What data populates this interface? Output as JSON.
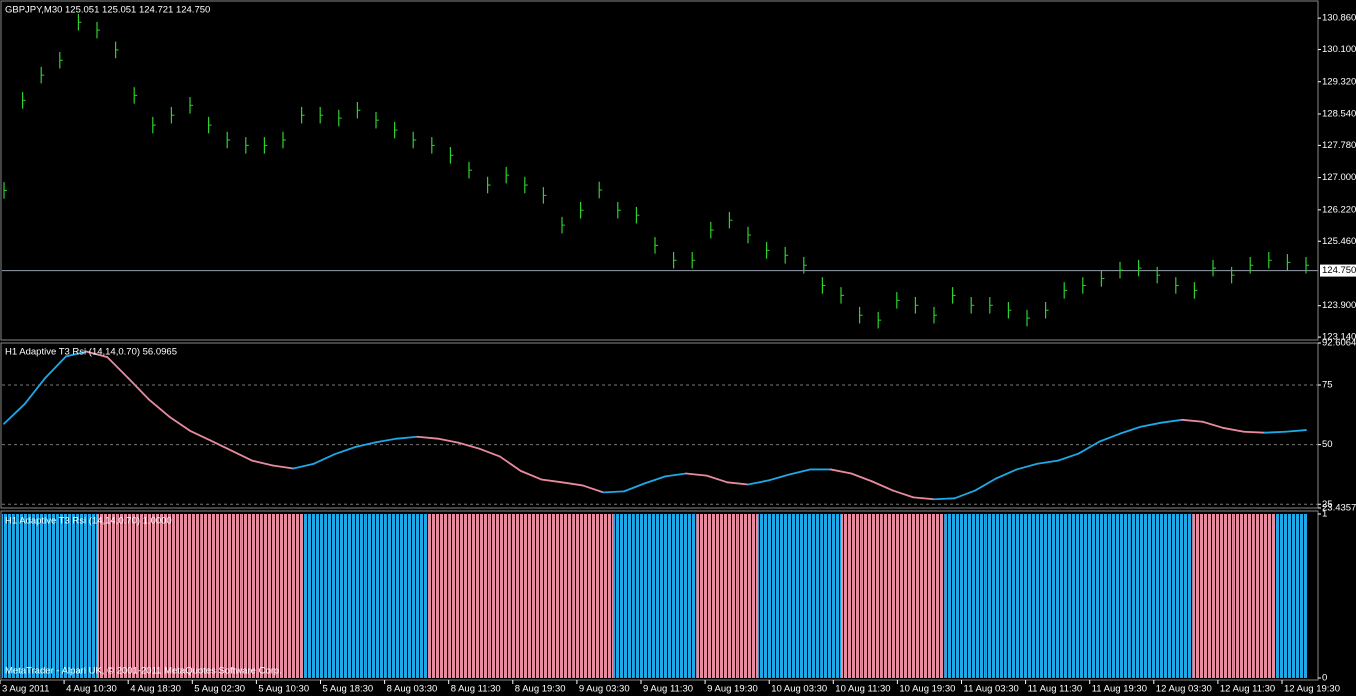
{
  "chart_data": [
    {
      "type": "hlbar",
      "title": "GBPJPY,M30  125.051 125.051 124.721 124.750",
      "color": "#2fd02f",
      "high": [
        126.89,
        129.07,
        129.68,
        130.04,
        130.96,
        130.77,
        130.29,
        129.19,
        128.47,
        128.71,
        128.95,
        128.47,
        128.11,
        127.98,
        127.98,
        128.11,
        128.71,
        128.71,
        128.64,
        128.83,
        128.59,
        128.35,
        128.11,
        127.98,
        127.74,
        127.38,
        127.02,
        127.26,
        127.02,
        126.77,
        126.05,
        126.41,
        126.9,
        126.41,
        126.29,
        125.56,
        125.2,
        125.2,
        125.93,
        126.17,
        125.81,
        125.44,
        125.32,
        125.08,
        124.59,
        124.35,
        123.87,
        123.75,
        124.23,
        124.11,
        123.87,
        124.35,
        124.11,
        124.11,
        123.99,
        123.8,
        123.99,
        124.47,
        124.59,
        124.76,
        124.96,
        125.01,
        124.84,
        124.59,
        124.47,
        125.01,
        124.84,
        125.08,
        125.2,
        125.15,
        125.08
      ],
      "low": [
        126.49,
        128.67,
        129.28,
        129.64,
        130.56,
        130.37,
        129.89,
        128.79,
        128.07,
        128.31,
        128.55,
        128.07,
        127.71,
        127.58,
        127.58,
        127.71,
        128.31,
        128.31,
        128.24,
        128.43,
        128.19,
        127.95,
        127.71,
        127.58,
        127.34,
        126.98,
        126.62,
        126.86,
        126.62,
        126.37,
        125.65,
        126.01,
        126.5,
        126.01,
        125.89,
        125.16,
        124.8,
        124.8,
        125.53,
        125.77,
        125.41,
        125.04,
        124.92,
        124.68,
        124.19,
        123.95,
        123.47,
        123.35,
        123.83,
        123.71,
        123.47,
        123.95,
        123.71,
        123.71,
        123.59,
        123.4,
        123.59,
        124.07,
        124.19,
        124.36,
        124.56,
        124.61,
        124.44,
        124.19,
        124.07,
        124.61,
        124.44,
        124.68,
        124.8,
        124.75,
        124.68
      ],
      "current_price": {
        "value": 124.75,
        "label": "124.750"
      },
      "ylim": [
        123.07,
        131.25
      ],
      "yticks": [
        {
          "value": 130.86,
          "label": "130.860"
        },
        {
          "value": 130.1,
          "label": "130.100"
        },
        {
          "value": 129.32,
          "label": "129.320"
        },
        {
          "value": 128.54,
          "label": "128.540"
        },
        {
          "value": 127.78,
          "label": "127.780"
        },
        {
          "value": 127.0,
          "label": "127.000"
        },
        {
          "value": 126.22,
          "label": "126.220"
        },
        {
          "value": 125.46,
          "label": "125.460"
        },
        {
          "value": 123.9,
          "label": "123.900"
        },
        {
          "value": 123.14,
          "label": "123.140"
        }
      ]
    },
    {
      "type": "line",
      "title": "H1  Adaptive T3 Rsi (14,14,0.70) 56.0965",
      "up_color": "#1ea8e6",
      "down_color": "#e88aa0",
      "values": [
        58.75,
        67,
        78,
        87,
        89,
        86.7,
        78,
        69,
        61.7,
        55.8,
        51.7,
        47.5,
        43.3,
        41.25,
        40,
        42,
        46,
        49,
        51,
        52.5,
        53.3,
        52.5,
        50.8,
        48.3,
        45,
        39,
        35.4,
        34.2,
        32.9,
        30,
        30.4,
        33.75,
        36.7,
        37.9,
        37,
        34.2,
        33.3,
        35,
        37.5,
        39.6,
        39.6,
        37.9,
        34.6,
        30.8,
        27.9,
        27.1,
        27.5,
        30.8,
        35.8,
        39.6,
        42,
        43.3,
        46.25,
        51.25,
        54.6,
        57.5,
        59.2,
        60.4,
        59.6,
        57,
        55.4,
        55,
        55.4,
        56.1
      ],
      "ylim": [
        23.4357,
        92.6064
      ],
      "yticks": [
        92.6064,
        75,
        50,
        25,
        23.4357
      ],
      "grid": [
        75,
        50,
        25
      ]
    },
    {
      "type": "histogram",
      "title": "H1  Adaptive T3 Rsi (14,14,0.70) 1.0000",
      "values": [
        1,
        1,
        1,
        1,
        1,
        1,
        1,
        1,
        1,
        1,
        1,
        1,
        1,
        1,
        1,
        1,
        1,
        1,
        1,
        1,
        1,
        1,
        1,
        1,
        1,
        1,
        1,
        1,
        1,
        1,
        1,
        1,
        1,
        1,
        1,
        1,
        1,
        1,
        1,
        1,
        1,
        1,
        1,
        1,
        1,
        1,
        1,
        1,
        1,
        1,
        1,
        1,
        1,
        1,
        1,
        1,
        1,
        1,
        1,
        1,
        1,
        1,
        1,
        1
      ],
      "ylim": [
        0,
        1
      ],
      "yticks": [
        1,
        0
      ]
    }
  ],
  "footer": "MetaTrader - Alpari UK, © 2001-2011 MetaQuotes Software Corp.",
  "time_axis": [
    "3 Aug 2011",
    "4 Aug 10:30",
    "4 Aug 18:30",
    "5 Aug 02:30",
    "5 Aug 10:30",
    "5 Aug 18:30",
    "8 Aug 03:30",
    "8 Aug 11:30",
    "8 Aug 19:30",
    "9 Aug 03:30",
    "9 Aug 11:30",
    "9 Aug 19:30",
    "10 Aug 03:30",
    "10 Aug 11:30",
    "10 Aug 19:30",
    "11 Aug 03:30",
    "11 Aug 11:30",
    "11 Aug 19:30",
    "12 Aug 03:30",
    "12 Aug 11:30",
    "12 Aug 19:30"
  ]
}
